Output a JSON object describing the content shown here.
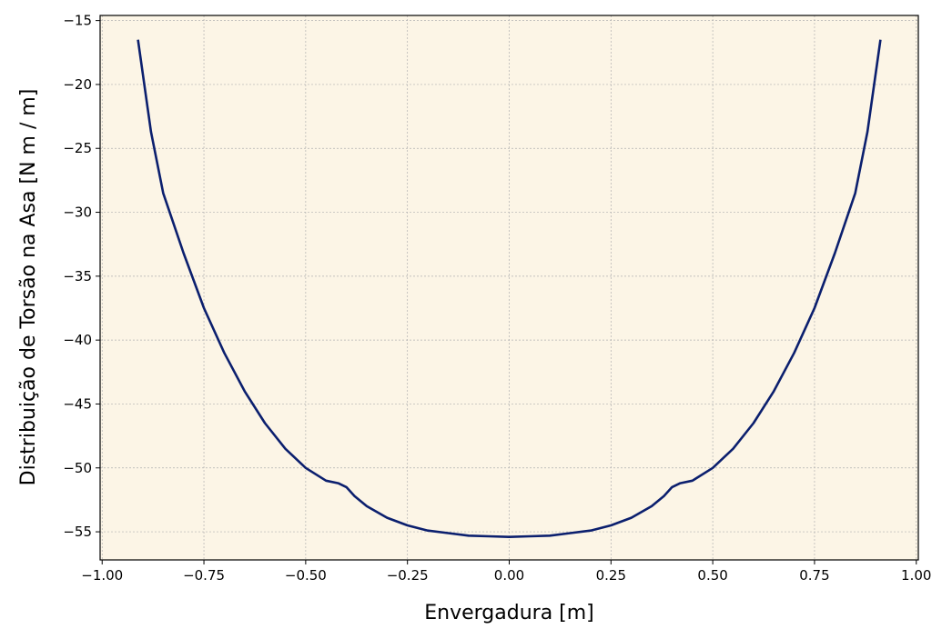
{
  "chart_data": {
    "type": "line",
    "title": "",
    "xlabel": "Envergadura [m]",
    "ylabel": "Distribuição de Torsão na Asa [N m / m]",
    "xlim": [
      -1.005,
      1.005
    ],
    "ylim": [
      -57.2,
      -14.6
    ],
    "grid": true,
    "legend": "none",
    "x_ticks": [
      -1.0,
      -0.75,
      -0.5,
      -0.25,
      0.0,
      0.25,
      0.5,
      0.75,
      1.0
    ],
    "x_tick_labels": [
      "−1.00",
      "−0.75",
      "−0.50",
      "−0.25",
      "0.00",
      "0.25",
      "0.50",
      "0.75",
      "1.00"
    ],
    "y_ticks": [
      -55,
      -50,
      -45,
      -40,
      -35,
      -30,
      -25,
      -20,
      -15
    ],
    "y_tick_labels": [
      "−55",
      "−50",
      "−45",
      "−40",
      "−35",
      "−30",
      "−25",
      "−20",
      "−15"
    ],
    "colors": {
      "line": "#0b1f6e",
      "plot_background": "#fcf5e6",
      "grid": "#b0b0b0"
    },
    "series": [
      {
        "x": [
          -0.912,
          -0.88,
          -0.85,
          -0.8,
          -0.75,
          -0.7,
          -0.65,
          -0.6,
          -0.55,
          -0.5,
          -0.45,
          -0.42,
          -0.4,
          -0.38,
          -0.35,
          -0.3,
          -0.25,
          -0.2,
          -0.15,
          -0.1,
          -0.05,
          0.0,
          0.05,
          0.1,
          0.15,
          0.2,
          0.25,
          0.3,
          0.35,
          0.38,
          0.4,
          0.42,
          0.45,
          0.5,
          0.55,
          0.6,
          0.65,
          0.7,
          0.75,
          0.8,
          0.85,
          0.88,
          0.912
        ],
        "y": [
          -16.5,
          -23.7,
          -28.5,
          -33.2,
          -37.5,
          -41.0,
          -44.0,
          -46.5,
          -48.5,
          -50.0,
          -51.0,
          -51.2,
          -51.5,
          -52.2,
          -53.0,
          -53.9,
          -54.5,
          -54.9,
          -55.1,
          -55.3,
          -55.35,
          -55.4,
          -55.35,
          -55.3,
          -55.1,
          -54.9,
          -54.5,
          -53.9,
          -53.0,
          -52.2,
          -51.5,
          -51.2,
          -51.0,
          -50.0,
          -48.5,
          -46.5,
          -44.0,
          -41.0,
          -37.5,
          -33.2,
          -28.5,
          -23.7,
          -16.5
        ]
      }
    ]
  }
}
